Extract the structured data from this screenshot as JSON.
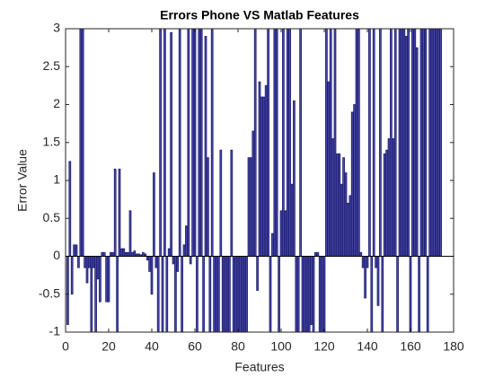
{
  "chart_data": {
    "type": "bar",
    "title": "Errors Phone VS Matlab Features",
    "x_label": "Features",
    "y_label": "Error Value",
    "x": [
      1,
      2,
      3,
      4,
      5,
      6,
      7,
      8,
      9,
      10,
      11,
      12,
      13,
      14,
      15,
      16,
      17,
      18,
      19,
      20,
      21,
      22,
      23,
      24,
      25,
      26,
      27,
      28,
      29,
      30,
      31,
      32,
      33,
      34,
      35,
      36,
      37,
      38,
      39,
      40,
      41,
      42,
      43,
      44,
      45,
      46,
      47,
      48,
      49,
      50,
      51,
      52,
      53,
      54,
      55,
      56,
      57,
      58,
      59,
      60,
      61,
      62,
      63,
      64,
      65,
      66,
      67,
      68,
      69,
      70,
      71,
      72,
      73,
      74,
      75,
      76,
      77,
      78,
      79,
      80,
      81,
      82,
      83,
      84,
      85,
      86,
      87,
      88,
      89,
      90,
      91,
      92,
      93,
      94,
      95,
      96,
      97,
      98,
      99,
      100,
      101,
      102,
      103,
      104,
      105,
      106,
      107,
      108,
      109,
      110,
      111,
      112,
      113,
      114,
      115,
      116,
      117,
      118,
      119,
      120,
      121,
      122,
      123,
      124,
      125,
      126,
      127,
      128,
      129,
      130,
      131,
      132,
      133,
      134,
      135,
      136,
      137,
      138,
      139,
      140,
      141,
      142,
      143,
      144,
      145,
      146,
      147,
      148,
      149,
      150,
      151,
      152,
      153,
      154,
      155,
      156,
      157,
      158,
      159,
      160,
      161,
      162,
      163,
      164,
      165,
      166,
      167,
      168,
      169,
      170,
      171,
      172,
      173,
      174
    ],
    "values": [
      -0.9,
      1.25,
      -0.5,
      0.15,
      0.15,
      -0.15,
      3,
      3,
      -0.15,
      -0.35,
      -0.15,
      -1,
      -0.15,
      -1,
      -0.3,
      -0.6,
      0.05,
      0.05,
      -0.6,
      -0.6,
      0.05,
      0.05,
      1.15,
      -1,
      1.15,
      0.1,
      0.1,
      0.05,
      0.05,
      0.6,
      0.05,
      0.07,
      0.03,
      0.03,
      0.02,
      0.05,
      0.03,
      -0.05,
      -0.2,
      -0.5,
      1.1,
      -0.15,
      -1,
      3,
      -1,
      3,
      -1,
      0.1,
      2.95,
      -0.1,
      -1,
      -0.2,
      3,
      -1,
      0.15,
      0.4,
      3,
      -0.1,
      3,
      3,
      -1,
      3,
      3,
      -1,
      2.9,
      1.3,
      -1,
      3,
      -1,
      -1,
      -1,
      1.4,
      -1,
      -1,
      -1,
      -1,
      1.4,
      -1,
      -1,
      -1,
      -1,
      -1,
      -1,
      -1,
      1.3,
      1.3,
      1.65,
      3,
      -0.45,
      2.3,
      2.1,
      2.1,
      2.25,
      3,
      -1,
      0.3,
      3,
      3,
      -1,
      0.6,
      3,
      0.6,
      3,
      3,
      0.95,
      2.05,
      -1,
      -1,
      3,
      -1,
      -1,
      -1,
      -1,
      -0.9,
      -1,
      0.05,
      0.05,
      -1,
      -1,
      -1,
      3,
      2.3,
      3,
      1.55,
      3,
      1.35,
      1.35,
      0.95,
      1.3,
      1.1,
      0.7,
      0.8,
      1.9,
      2.0,
      3,
      3,
      0.05,
      -0.15,
      -0.55,
      -0.15,
      3,
      -1,
      3,
      -0.15,
      -0.65,
      3,
      -1,
      1.35,
      1.4,
      1.55,
      3,
      1.55,
      3,
      -1,
      3,
      3,
      3,
      2.9,
      3,
      -1,
      3,
      3,
      2.75,
      -1,
      3,
      3,
      3,
      -1,
      3,
      3,
      3,
      3,
      3,
      3
    ],
    "color": "#4b4ba0",
    "edge_color": "#1c1c78",
    "xlim": [
      0,
      180
    ],
    "xticks": [
      0,
      20,
      40,
      60,
      80,
      100,
      120,
      140,
      160,
      180
    ],
    "ylim": [
      -1,
      3
    ],
    "yticks": [
      -1,
      -0.5,
      0,
      0.5,
      1,
      1.5,
      2,
      2.5,
      3
    ],
    "grid": false
  }
}
